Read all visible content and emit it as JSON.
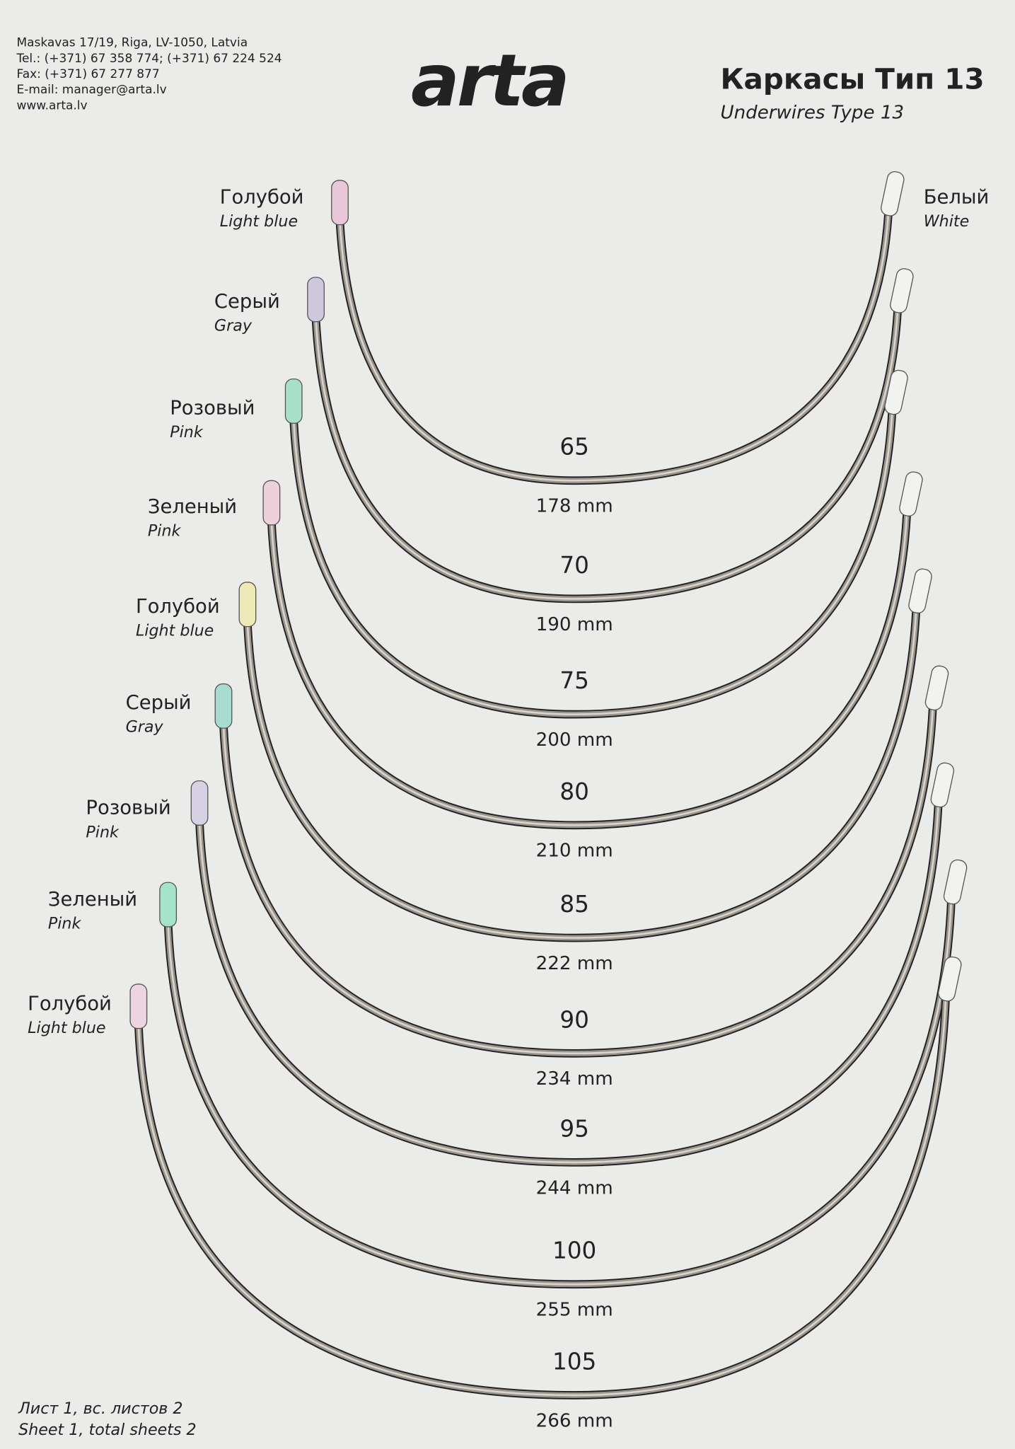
{
  "header": {
    "contact": [
      "Maskavas 17/19, Riga, LV-1050, Latvia",
      "Tel.: (+371) 67 358 774; (+371) 67 224 524",
      "Fax: (+371) 67 277 877",
      "E-mail: manager@arta.lv",
      "www.arta.lv"
    ],
    "logo": "arta",
    "title": "Каркасы Тип 13",
    "subtitle": "Underwires Type 13"
  },
  "right_label": {
    "ru": "Белый",
    "en": "White"
  },
  "wires": [
    {
      "size": "65",
      "length": "178 mm",
      "ru": "Голубой",
      "en": "Light blue"
    },
    {
      "size": "70",
      "length": "190 mm",
      "ru": "Серый",
      "en": "Gray"
    },
    {
      "size": "75",
      "length": "200 mm",
      "ru": "Розовый",
      "en": "Pink"
    },
    {
      "size": "80",
      "length": "210 mm",
      "ru": "Зеленый",
      "en": "Pink"
    },
    {
      "size": "85",
      "length": "222 mm",
      "ru": "Голубой",
      "en": "Light blue"
    },
    {
      "size": "90",
      "length": "234 mm",
      "ru": "Серый",
      "en": "Gray"
    },
    {
      "size": "95",
      "length": "244 mm",
      "ru": "Розовый",
      "en": "Pink"
    },
    {
      "size": "100",
      "length": "255 mm",
      "ru": "Зеленый",
      "en": "Pink"
    },
    {
      "size": "105",
      "length": "266 mm",
      "ru": "Голубой",
      "en": "Light blue"
    }
  ],
  "footer": [
    "Лист 1, вс. листов 2",
    "Sheet 1, total sheets 2"
  ]
}
